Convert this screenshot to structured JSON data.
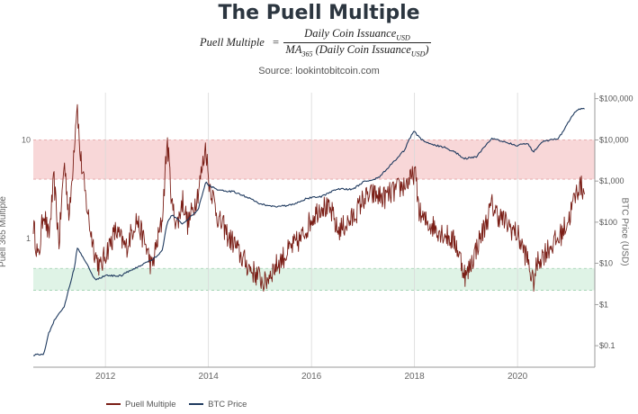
{
  "title": "The Puell Multiple",
  "formula": {
    "lhs": "Puell Multiple",
    "equals": "=",
    "numerator": "Daily Coin Issuance",
    "numerator_sub": "USD",
    "denominator_prefix": "MA",
    "denominator_prefix_sub": "365",
    "denominator_body": " (Daily Coin Issuance",
    "denominator_sub": "USD",
    "denominator_close": ")"
  },
  "source": "Source: lookintobitcoin.com",
  "legend": {
    "puell": "Puell Multiple",
    "btc": "BTC Price"
  },
  "colors": {
    "puell": "#7a1e16",
    "btc": "#1f3a5f",
    "red_band": "#f8d7d8",
    "green_band": "#dff3e6",
    "grid": "#d9d9d9"
  },
  "chart_data": {
    "type": "line",
    "title": "The Puell Multiple",
    "xlabel": "",
    "ylabel_left": "Puell 365 Multiple",
    "ylabel_right": "BTC Price (USD)",
    "left_axis_scale": "log",
    "right_axis_scale": "log",
    "xlim": [
      2010.6,
      2021.5
    ],
    "left_ylim": [
      0.05,
      30
    ],
    "right_ylim": [
      0.03,
      140000
    ],
    "x_ticks": [
      "2012",
      "2014",
      "2016",
      "2018",
      "2020"
    ],
    "left_ticks": [
      {
        "value": 10,
        "label": "10"
      },
      {
        "value": 1,
        "label": "1"
      }
    ],
    "right_ticks": [
      {
        "value": 100000,
        "label": "$100,000"
      },
      {
        "value": 10000,
        "label": "$10,000"
      },
      {
        "value": 1000,
        "label": "$1,000"
      },
      {
        "value": 100,
        "label": "$100"
      },
      {
        "value": 10,
        "label": "$10"
      },
      {
        "value": 1,
        "label": "$1"
      },
      {
        "value": 0.1,
        "label": "$0.1"
      }
    ],
    "bands": [
      {
        "name": "red",
        "lower": 4,
        "upper": 10
      },
      {
        "name": "green",
        "lower": 0.3,
        "upper": 0.5
      }
    ],
    "grid": true,
    "legend_position": "bottom-left",
    "series": [
      {
        "name": "Puell Multiple",
        "x": [
          2010.6,
          2010.7,
          2010.8,
          2010.9,
          2011.0,
          2011.1,
          2011.2,
          2011.3,
          2011.4,
          2011.45,
          2011.5,
          2011.6,
          2011.7,
          2011.8,
          2011.9,
          2012.0,
          2012.2,
          2012.4,
          2012.6,
          2012.8,
          2012.9,
          2013.0,
          2013.1,
          2013.2,
          2013.3,
          2013.4,
          2013.5,
          2013.6,
          2013.7,
          2013.8,
          2013.9,
          2013.95,
          2014.0,
          2014.1,
          2014.2,
          2014.3,
          2014.4,
          2014.5,
          2014.6,
          2014.8,
          2015.0,
          2015.1,
          2015.2,
          2015.4,
          2015.6,
          2015.8,
          2016.0,
          2016.2,
          2016.4,
          2016.5,
          2016.6,
          2016.8,
          2017.0,
          2017.2,
          2017.4,
          2017.6,
          2017.8,
          2017.95,
          2018.0,
          2018.1,
          2018.2,
          2018.4,
          2018.6,
          2018.8,
          2018.9,
          2019.0,
          2019.2,
          2019.4,
          2019.5,
          2019.6,
          2019.8,
          2020.0,
          2020.2,
          2020.3,
          2020.4,
          2020.6,
          2020.8,
          2021.0,
          2021.1,
          2021.2,
          2021.3
        ],
        "values": [
          1.4,
          0.6,
          2.0,
          1.0,
          4.0,
          0.9,
          6.0,
          1.6,
          10.0,
          25.0,
          8.0,
          3.0,
          1.3,
          0.7,
          0.5,
          0.7,
          1.2,
          0.8,
          1.6,
          0.8,
          0.5,
          0.9,
          1.5,
          10.0,
          2.0,
          1.4,
          2.5,
          1.4,
          2.0,
          3.0,
          6.0,
          9.0,
          4.0,
          2.5,
          1.5,
          1.3,
          1.0,
          0.9,
          0.7,
          0.5,
          0.4,
          0.35,
          0.45,
          0.6,
          0.8,
          1.0,
          1.6,
          2.2,
          1.8,
          1.2,
          1.3,
          1.6,
          2.5,
          2.8,
          2.6,
          3.0,
          3.5,
          4.0,
          5.0,
          1.8,
          1.5,
          1.3,
          1.1,
          0.9,
          0.6,
          0.4,
          0.8,
          1.5,
          2.2,
          1.8,
          1.4,
          1.1,
          0.6,
          0.35,
          0.6,
          0.8,
          1.0,
          1.6,
          2.5,
          3.5,
          3.0
        ]
      },
      {
        "name": "BTC Price",
        "x": [
          2010.6,
          2010.8,
          2010.9,
          2011.0,
          2011.2,
          2011.4,
          2011.45,
          2011.6,
          2011.8,
          2012.0,
          2012.3,
          2012.6,
          2012.9,
          2013.1,
          2013.2,
          2013.3,
          2013.5,
          2013.8,
          2013.95,
          2014.0,
          2014.2,
          2014.5,
          2014.8,
          2015.0,
          2015.3,
          2015.6,
          2015.9,
          2016.2,
          2016.5,
          2016.8,
          2017.0,
          2017.3,
          2017.6,
          2017.8,
          2017.95,
          2018.0,
          2018.1,
          2018.3,
          2018.6,
          2018.85,
          2018.95,
          2019.2,
          2019.5,
          2019.8,
          2020.0,
          2020.2,
          2020.3,
          2020.5,
          2020.8,
          2021.0,
          2021.1,
          2021.2,
          2021.3
        ],
        "values": [
          0.06,
          0.06,
          0.2,
          0.4,
          0.9,
          8,
          25,
          12,
          4,
          5,
          5,
          8,
          12,
          20,
          100,
          150,
          90,
          200,
          1000,
          800,
          600,
          550,
          380,
          280,
          240,
          260,
          380,
          420,
          650,
          620,
          950,
          1200,
          3000,
          5500,
          14000,
          16000,
          11000,
          8000,
          6500,
          4500,
          3500,
          3800,
          11000,
          8500,
          7200,
          8500,
          5000,
          9200,
          11000,
          29000,
          45000,
          55000,
          58000
        ]
      }
    ]
  }
}
